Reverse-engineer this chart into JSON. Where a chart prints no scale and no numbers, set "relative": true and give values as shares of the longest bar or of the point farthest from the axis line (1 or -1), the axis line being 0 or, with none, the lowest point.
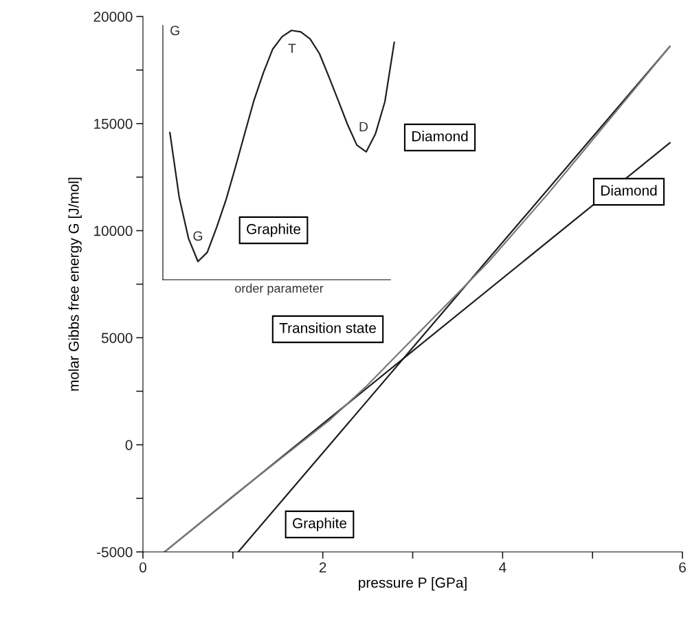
{
  "chart_data": [
    {
      "type": "line",
      "xlabel": "pressure P [GPa]",
      "ylabel": "molar Gibbs free energy G [J/mol]",
      "xlim": [
        0,
        6
      ],
      "ylim": [
        -5000,
        20000
      ],
      "xticks": [
        0,
        {
          "value": 1,
          "label": null
        },
        2,
        {
          "value": 3,
          "label": null
        },
        4,
        {
          "value": 5,
          "label": null
        },
        6
      ],
      "yticks": [
        -5000,
        {
          "value": -2500,
          "label": null
        },
        0,
        {
          "value": 2500,
          "label": null
        },
        5000,
        {
          "value": 7500,
          "label": null
        },
        10000,
        {
          "value": 12500,
          "label": null
        },
        15000,
        {
          "value": 17500,
          "label": null
        },
        20000
      ],
      "grid": false,
      "legend": false,
      "series": [
        {
          "name": "Graphite",
          "color": "#1e1e1e",
          "x": [
            1.06,
            5.86
          ],
          "values": [
            -5000,
            18600
          ]
        },
        {
          "name": "Diamond",
          "color": "#1e1e1e",
          "x": [
            0.24,
            5.86
          ],
          "values": [
            -5000,
            14100
          ]
        },
        {
          "name": "Transition state",
          "color": "#7a7a7a",
          "x": [
            0.24,
            1.0,
            2.07,
            2.5,
            3.1,
            3.6,
            3.85,
            4.5,
            5.86
          ],
          "values": [
            -5000,
            -2400,
            1130,
            2800,
            5370,
            7500,
            8575,
            11700,
            18600
          ]
        }
      ]
    },
    {
      "type": "line",
      "relative": true,
      "xlabel": "order parameter",
      "ylabel": "G",
      "categories": [
        null,
        null,
        null,
        null,
        null,
        null,
        null,
        null,
        null,
        null,
        null,
        null,
        null,
        null,
        null,
        null,
        null,
        null,
        null,
        null,
        null,
        null,
        null,
        null,
        null
      ],
      "series": [
        {
          "color": "#1e1e1e",
          "values": [
            0.59,
            0.33,
            0.165,
            0.073,
            0.11,
            0.21,
            0.32,
            0.45,
            0.586,
            0.72,
            0.83,
            0.925,
            0.975,
            1.0,
            0.994,
            0.966,
            0.907,
            0.815,
            0.72,
            0.623,
            0.54,
            0.513,
            0.586,
            0.714,
            0.952
          ]
        }
      ],
      "annotations": [
        "G",
        "T",
        "D",
        "Graphite",
        "Diamond"
      ]
    }
  ]
}
